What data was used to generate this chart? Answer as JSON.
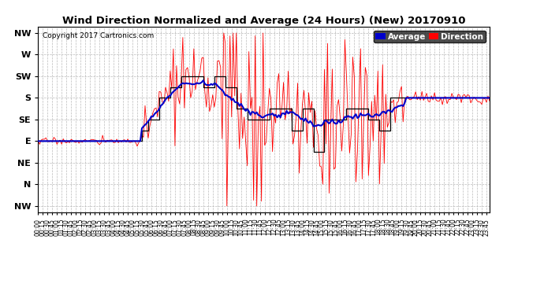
{
  "title": "Wind Direction Normalized and Average (24 Hours) (New) 20170910",
  "copyright": "Copyright 2017 Cartronics.com",
  "ytick_labels": [
    "NW",
    "W",
    "SW",
    "S",
    "SE",
    "E",
    "NE",
    "N",
    "NW"
  ],
  "ytick_values": [
    8,
    7,
    6,
    5,
    4,
    3,
    2,
    1,
    0
  ],
  "ylim": [
    -0.3,
    8.3
  ],
  "bg_color": "#ffffff",
  "grid_color": "#aaaaaa",
  "legend_avg_bg": "#0000cc",
  "legend_dir_bg": "#ff0000",
  "line_avg_color": "#0000cc",
  "line_dir_color": "#ff0000",
  "line_step_color": "#000000"
}
